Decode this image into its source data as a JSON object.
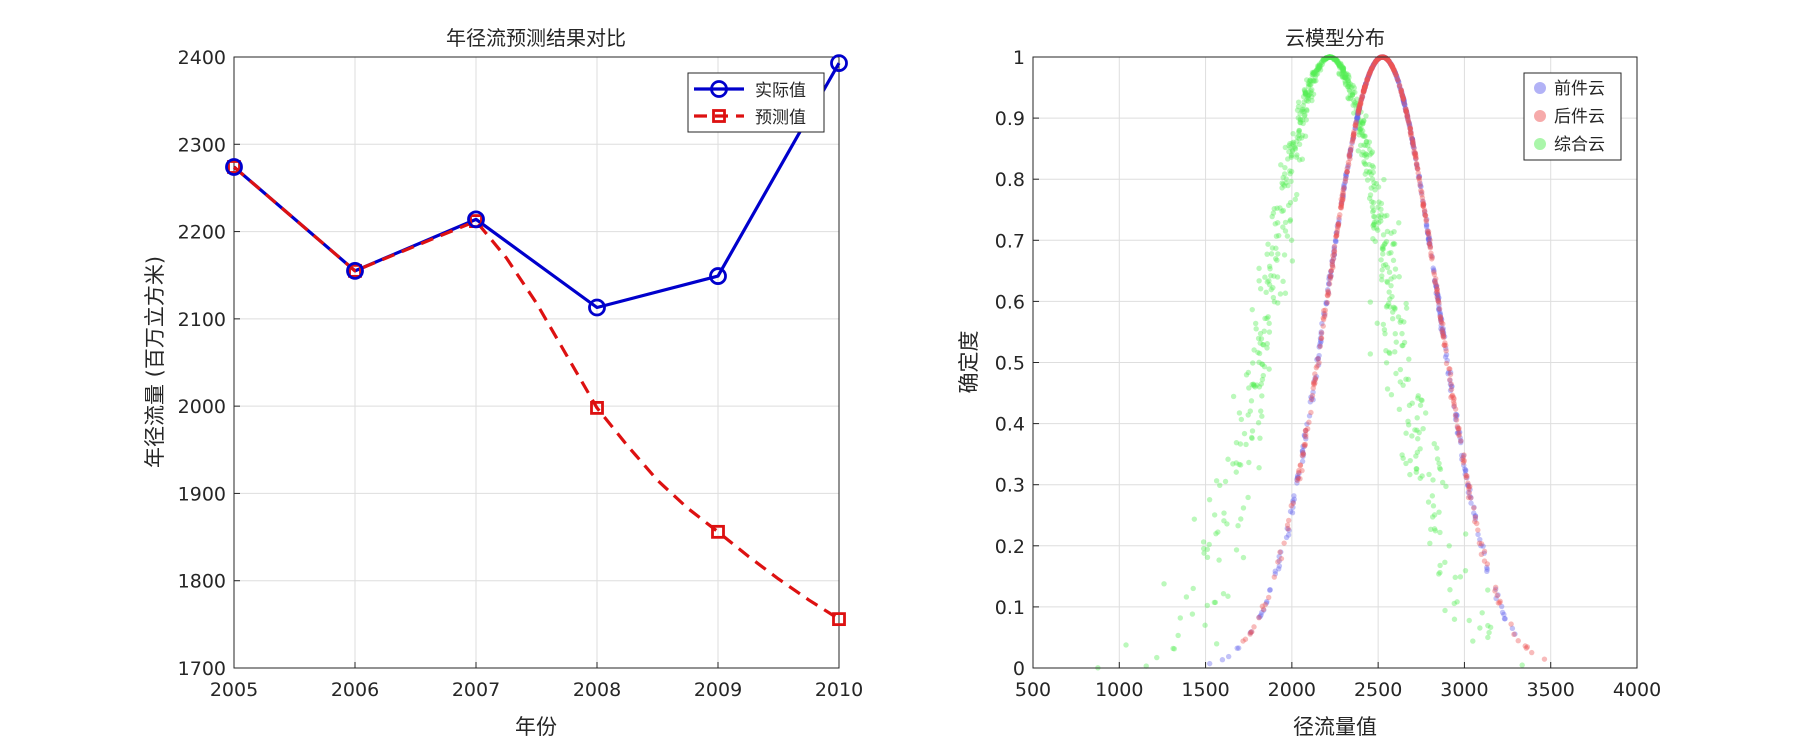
{
  "chart_data": [
    {
      "type": "line",
      "title": "年径流预测结果对比",
      "xlabel": "年份",
      "ylabel": "年径流量 (百万立方米)",
      "xlim": [
        2005,
        2010
      ],
      "ylim": [
        1700,
        2400
      ],
      "xticks": [
        "2005",
        "2006",
        "2007",
        "2008",
        "2009",
        "2010"
      ],
      "yticks": [
        "1700",
        "1800",
        "1900",
        "2000",
        "2100",
        "2200",
        "2300",
        "2400"
      ],
      "x": [
        2005,
        2006,
        2007,
        2008,
        2009,
        2010
      ],
      "grid": true,
      "legend_position": "top-right",
      "series": [
        {
          "name": "实际值",
          "values": [
            2274,
            2155,
            2214,
            2113,
            2149,
            2393
          ],
          "color": "#0000cc",
          "marker": "circle",
          "line": "solid"
        },
        {
          "name": "预测值",
          "values": [
            2274,
            2155,
            2212,
            1998,
            1856,
            1756
          ],
          "color": "#dd1111",
          "marker": "square",
          "line": "dashed",
          "curve_x": [
            2007,
            2007.25,
            2007.5,
            2007.75,
            2008,
            2008.25,
            2008.5,
            2008.75,
            2009,
            2009.25,
            2009.5,
            2009.75,
            2010
          ],
          "curve_y": [
            2212,
            2170,
            2118,
            2058,
            1998,
            1955,
            1915,
            1883,
            1856,
            1828,
            1802,
            1778,
            1756
          ]
        }
      ]
    },
    {
      "type": "scatter",
      "title": "云模型分布",
      "xlabel": "径流量值",
      "ylabel": "确定度",
      "xlim": [
        500,
        4000
      ],
      "ylim": [
        0,
        1
      ],
      "xticks": [
        "500",
        "1000",
        "1500",
        "2000",
        "2500",
        "3000",
        "3500",
        "4000"
      ],
      "yticks": [
        "0",
        "0.1",
        "0.2",
        "0.3",
        "0.4",
        "0.5",
        "0.6",
        "0.7",
        "0.8",
        "0.9",
        "1"
      ],
      "grid": true,
      "legend_position": "top-right",
      "series": [
        {
          "name": "前件云",
          "color": "#6666ee",
          "Ex": 2525,
          "En": 320,
          "He": 3,
          "n": 500
        },
        {
          "name": "后件云",
          "color": "#ee5555",
          "Ex": 2525,
          "En": 320,
          "He": 3,
          "n": 500
        },
        {
          "name": "综合云",
          "color": "#55ee55",
          "Ex": 2220,
          "En": 360,
          "He": 45,
          "n": 700
        }
      ]
    }
  ]
}
